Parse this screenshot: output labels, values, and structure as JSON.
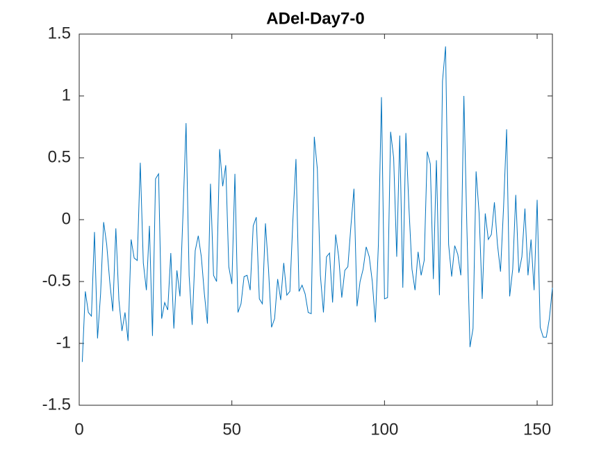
{
  "chart_data": {
    "type": "line",
    "title": "ADel-Day7-0",
    "color": "#0072bd",
    "x": [
      1,
      2,
      3,
      4,
      5,
      6,
      7,
      8,
      9,
      10,
      11,
      12,
      13,
      14,
      15,
      16,
      17,
      18,
      19,
      20,
      21,
      22,
      23,
      24,
      25,
      26,
      27,
      28,
      29,
      30,
      31,
      32,
      33,
      34,
      35,
      36,
      37,
      38,
      39,
      40,
      41,
      42,
      43,
      44,
      45,
      46,
      47,
      48,
      49,
      50,
      51,
      52,
      53,
      54,
      55,
      56,
      57,
      58,
      59,
      60,
      61,
      62,
      63,
      64,
      65,
      66,
      67,
      68,
      69,
      70,
      71,
      72,
      73,
      74,
      75,
      76,
      77,
      78,
      79,
      80,
      81,
      82,
      83,
      84,
      85,
      86,
      87,
      88,
      89,
      90,
      91,
      92,
      93,
      94,
      95,
      96,
      97,
      98,
      99,
      100,
      101,
      102,
      103,
      104,
      105,
      106,
      107,
      108,
      109,
      110,
      111,
      112,
      113,
      114,
      115,
      116,
      117,
      118,
      119,
      120,
      121,
      122,
      123,
      124,
      125,
      126,
      127,
      128,
      129,
      130,
      131,
      132,
      133,
      134,
      135,
      136,
      137,
      138,
      139,
      140,
      141,
      142,
      143,
      144,
      145,
      146,
      147,
      148,
      149,
      150,
      151,
      152,
      153,
      154,
      155
    ],
    "values": [
      -1.15,
      -0.58,
      -0.75,
      -0.78,
      -0.1,
      -0.96,
      -0.6,
      -0.02,
      -0.2,
      -0.5,
      -0.74,
      -0.07,
      -0.65,
      -0.9,
      -0.75,
      -0.98,
      -0.16,
      -0.31,
      -0.33,
      0.46,
      -0.35,
      -0.57,
      -0.05,
      -0.94,
      0.33,
      0.37,
      -0.8,
      -0.67,
      -0.73,
      -0.27,
      -0.88,
      -0.41,
      -0.62,
      0.05,
      0.78,
      -0.45,
      -0.85,
      -0.25,
      -0.13,
      -0.3,
      -0.6,
      -0.84,
      0.29,
      -0.45,
      -0.5,
      0.57,
      0.27,
      0.44,
      -0.38,
      -0.52,
      0.37,
      -0.75,
      -0.68,
      -0.46,
      -0.45,
      -0.57,
      -0.05,
      0.02,
      -0.64,
      -0.68,
      -0.03,
      -0.4,
      -0.87,
      -0.8,
      -0.48,
      -0.65,
      -0.35,
      -0.61,
      -0.58,
      0,
      0.49,
      -0.58,
      -0.53,
      -0.6,
      -0.75,
      -0.76,
      0.67,
      0.41,
      -0.45,
      -0.75,
      -0.3,
      -0.27,
      -0.67,
      -0.12,
      -0.3,
      -0.63,
      -0.41,
      -0.38,
      -0.05,
      0.25,
      -0.7,
      -0.5,
      -0.4,
      -0.22,
      -0.3,
      -0.5,
      -0.83,
      -0.2,
      0.99,
      -0.64,
      -0.63,
      0.71,
      0.5,
      -0.3,
      0.68,
      -0.55,
      0.7,
      0.1,
      -0.4,
      -0.57,
      -0.26,
      -0.45,
      -0.33,
      0.55,
      0.45,
      -0.48,
      0.48,
      -0.61,
      1.12,
      1.4,
      -0.2,
      -0.46,
      -0.21,
      -0.28,
      -0.45,
      1,
      -0.08,
      -1.03,
      -0.88,
      0.39,
      0.05,
      -0.64,
      0.05,
      -0.16,
      -0.12,
      0.14,
      -0.2,
      -0.42,
      0.1,
      0.73,
      -0.62,
      -0.4,
      0.2,
      -0.43,
      -0.3,
      0.09,
      -0.45,
      -0.16,
      -0.57,
      0.16,
      -0.87,
      -0.95,
      -0.95,
      -0.8,
      -0.55
    ],
    "xlim": [
      0,
      155
    ],
    "xticks": [
      0,
      50,
      100,
      150
    ],
    "ylim": [
      -1.5,
      1.5
    ],
    "yticks": [
      -1.5,
      -1,
      -0.5,
      0,
      0.5,
      1,
      1.5
    ]
  }
}
